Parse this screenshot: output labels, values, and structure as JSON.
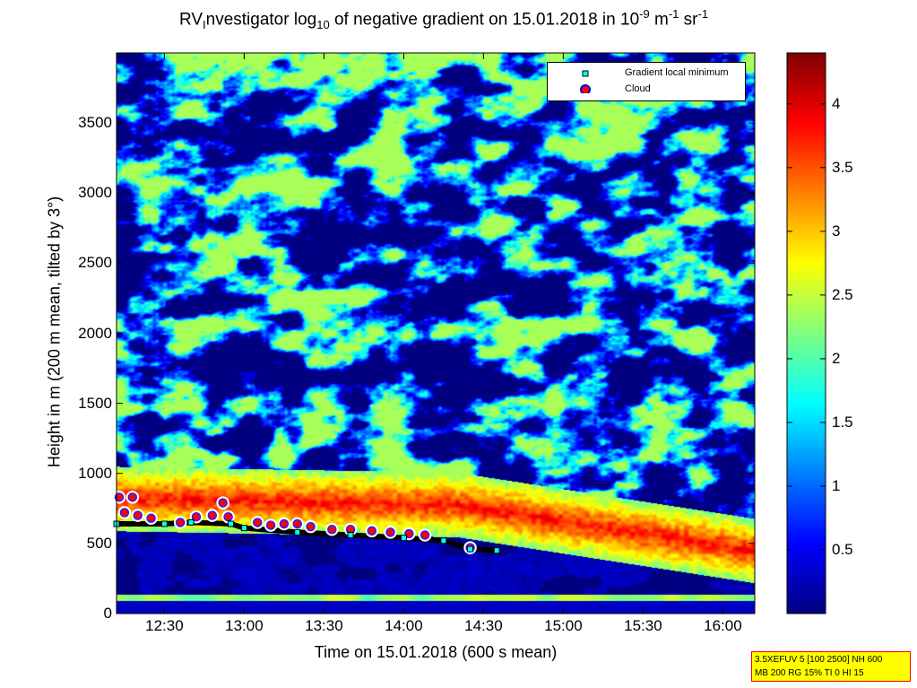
{
  "chart_data": {
    "type": "heatmap",
    "title": {
      "part1": "RV",
      "part1_sub": "I",
      "part2": "nvestigator log",
      "part2_sub": "10",
      "part3": " of negative gradient on 15.01.2018 in 10",
      "part3_sup": "-9",
      "part4": " m",
      "part4_sup": "-1",
      "part5": " sr",
      "part5_sup": "-1"
    },
    "xlabel": "Time on 15.01.2018 (600 s mean)",
    "ylabel": "Height in m (200 m mean, tilted by 3°)",
    "x_range": [
      "12:12",
      "16:12"
    ],
    "y_range": [
      0,
      4000
    ],
    "x_ticks": [
      "12:30",
      "13:00",
      "13:30",
      "14:00",
      "14:30",
      "15:00",
      "15:30",
      "16:00"
    ],
    "y_ticks": [
      0,
      500,
      1000,
      1500,
      2000,
      2500,
      3000,
      3500
    ],
    "colorbar": {
      "colormap": "jet",
      "range": [
        0,
        4.4
      ],
      "ticks": [
        "0.5",
        "1",
        "1.5",
        "2",
        "2.5",
        "3",
        "3.5",
        "4"
      ]
    },
    "legend": {
      "placement": "top-right",
      "entries": [
        {
          "label": "Gradient local minimum",
          "marker": "square",
          "color": "#00ffff"
        },
        {
          "label": "Cloud",
          "marker": "circle",
          "color": "#ff0000"
        }
      ]
    },
    "gradient_min_series": [
      {
        "t": "12:12",
        "h": 640
      },
      {
        "t": "12:30",
        "h": 640
      },
      {
        "t": "12:40",
        "h": 650
      },
      {
        "t": "12:55",
        "h": 640
      },
      {
        "t": "13:00",
        "h": 610
      },
      {
        "t": "13:20",
        "h": 580
      },
      {
        "t": "13:40",
        "h": 560
      },
      {
        "t": "14:00",
        "h": 540
      },
      {
        "t": "14:15",
        "h": 520
      },
      {
        "t": "14:25",
        "h": 460
      },
      {
        "t": "14:35",
        "h": 450
      }
    ],
    "cloud_series": [
      {
        "t": "12:13",
        "h": 830
      },
      {
        "t": "12:18",
        "h": 830
      },
      {
        "t": "12:15",
        "h": 720
      },
      {
        "t": "12:20",
        "h": 700
      },
      {
        "t": "12:25",
        "h": 680
      },
      {
        "t": "12:36",
        "h": 650
      },
      {
        "t": "12:42",
        "h": 690
      },
      {
        "t": "12:48",
        "h": 700
      },
      {
        "t": "12:52",
        "h": 790
      },
      {
        "t": "12:54",
        "h": 690
      },
      {
        "t": "13:05",
        "h": 650
      },
      {
        "t": "13:10",
        "h": 630
      },
      {
        "t": "13:15",
        "h": 640
      },
      {
        "t": "13:20",
        "h": 640
      },
      {
        "t": "13:25",
        "h": 620
      },
      {
        "t": "13:33",
        "h": 600
      },
      {
        "t": "13:40",
        "h": 600
      },
      {
        "t": "13:48",
        "h": 590
      },
      {
        "t": "13:55",
        "h": 580
      },
      {
        "t": "14:02",
        "h": 570
      },
      {
        "t": "14:08",
        "h": 560
      },
      {
        "t": "14:25",
        "h": 470
      }
    ]
  },
  "info_box": {
    "line1": "3.5XEFUV 5 [100 2500] NH 600",
    "line2": "MB 200 RG 15% TI 0 HI 15"
  }
}
